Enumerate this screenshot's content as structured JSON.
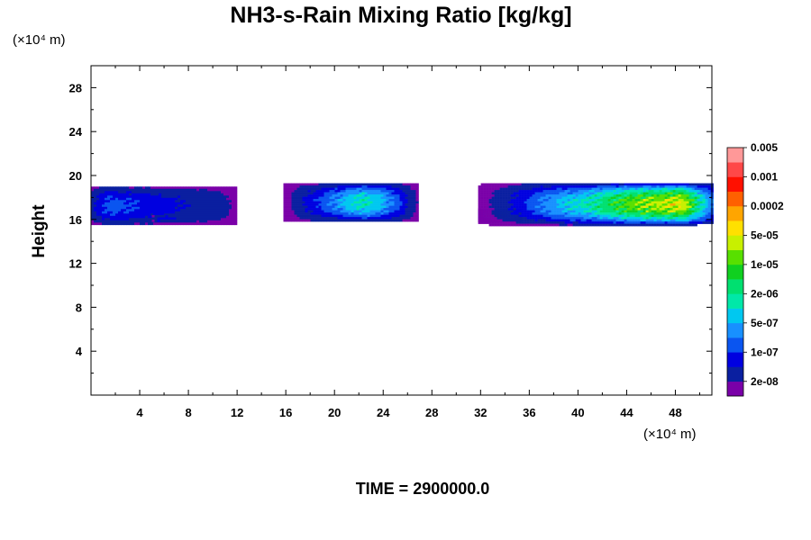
{
  "chart_data": {
    "type": "heatmap",
    "title": "NH3-s-Rain Mixing Ratio [kg/kg]",
    "xlabel": "",
    "ylabel": "Height",
    "x_unit": "(×10⁴ m)",
    "y_unit": "(×10⁴ m)",
    "xlim": [
      0,
      51
    ],
    "ylim": [
      0,
      30
    ],
    "x_ticks": [
      "4",
      "8",
      "12",
      "16",
      "20",
      "24",
      "28",
      "32",
      "36",
      "40",
      "44",
      "48"
    ],
    "y_ticks": [
      "4",
      "8",
      "12",
      "16",
      "20",
      "24",
      "28"
    ],
    "footer": "TIME = 2900000.0",
    "colorbar": {
      "colors": [
        "#7a00a8",
        "#0a1fa0",
        "#0000e0",
        "#0a55f0",
        "#1890ff",
        "#00c8f0",
        "#00e8a8",
        "#00e070",
        "#10d020",
        "#58e000",
        "#c8f000",
        "#ffe000",
        "#ffa500",
        "#ff6000",
        "#ff1000",
        "#ff4848",
        "#ff9898"
      ],
      "labels": [
        "2e-08",
        "1e-07",
        "5e-07",
        "2e-06",
        "1e-05",
        "5e-05",
        "0.0002",
        "0.001",
        "0.005"
      ]
    },
    "regions": [
      {
        "x_range": [
          0.0,
          11.8
        ],
        "y_range": [
          15.5,
          19.2
        ],
        "peak_level": 6,
        "profile": [
          0.8,
          0.65,
          0.55,
          0.5,
          0.45,
          0.4,
          0.35,
          0.3,
          0.25,
          0.22,
          0.2,
          0.18
        ]
      },
      {
        "x_range": [
          5.0,
          7.1
        ],
        "y_range": [
          15.8,
          16.6
        ],
        "peak_level": 4,
        "profile": [
          0.5,
          0.6,
          0.5
        ]
      },
      {
        "x_range": [
          15.8,
          26.8
        ],
        "y_range": [
          15.8,
          19.5
        ],
        "peak_level": 7,
        "profile": [
          0.1,
          0.2,
          0.35,
          0.5,
          0.7,
          0.9,
          1.0,
          0.85,
          0.6,
          0.35,
          0.2
        ]
      },
      {
        "x_range": [
          31.8,
          35.2
        ],
        "y_range": [
          15.9,
          17.2
        ],
        "peak_level": 11,
        "profile": [
          0.3,
          0.6,
          1.0,
          0.6,
          0.3
        ]
      },
      {
        "x_range": [
          31.8,
          51.0
        ],
        "y_range": [
          15.5,
          19.5
        ],
        "peak_level": 13,
        "profile": [
          0.05,
          0.1,
          0.15,
          0.25,
          0.35,
          0.45,
          0.5,
          0.6,
          0.7,
          0.8,
          0.85,
          0.9,
          0.95,
          0.9,
          1.0
        ]
      }
    ]
  }
}
